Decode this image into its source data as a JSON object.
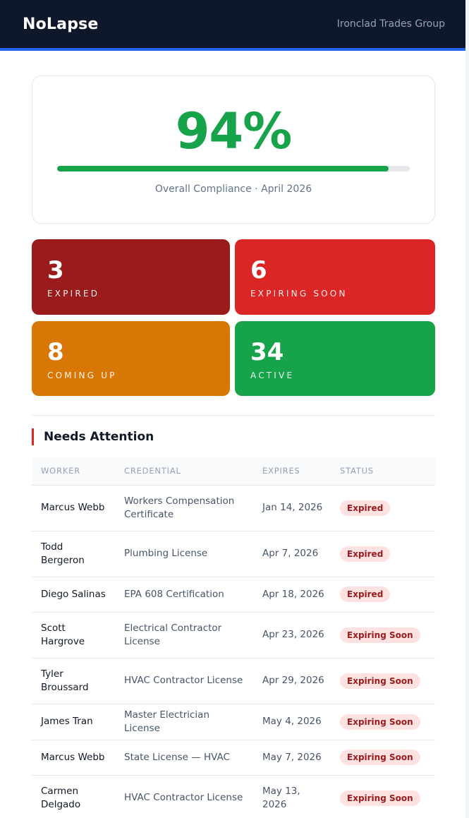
{
  "header": {
    "logo": "NoLapse",
    "org_name": "Ironclad Trades Group"
  },
  "compliance": {
    "value": "94%",
    "percent": 94,
    "caption": "Overall Compliance · April 2026"
  },
  "stats": [
    {
      "number": "3",
      "label": "EXPIRED",
      "color": "#991b1b"
    },
    {
      "number": "6",
      "label": "EXPIRING SOON",
      "color": "#dc2626"
    },
    {
      "number": "8",
      "label": "COMING UP",
      "color": "#d97706"
    },
    {
      "number": "34",
      "label": "ACTIVE",
      "color": "#16a34a"
    }
  ],
  "attention": {
    "title": "Needs Attention",
    "columns": [
      "WORKER",
      "CREDENTIAL",
      "EXPIRES",
      "STATUS"
    ],
    "rows": [
      {
        "worker": "Marcus Webb",
        "credential": "Workers Compensation Certificate",
        "expires": "Jan 14, 2026",
        "status": "Expired"
      },
      {
        "worker": "Todd Bergeron",
        "credential": "Plumbing License",
        "expires": "Apr 7, 2026",
        "status": "Expired"
      },
      {
        "worker": "Diego Salinas",
        "credential": "EPA 608 Certification",
        "expires": "Apr 18, 2026",
        "status": "Expired"
      },
      {
        "worker": "Scott Hargrove",
        "credential": "Electrical Contractor License",
        "expires": "Apr 23, 2026",
        "status": "Expiring Soon"
      },
      {
        "worker": "Tyler Broussard",
        "credential": "HVAC Contractor License",
        "expires": "Apr 29, 2026",
        "status": "Expiring Soon"
      },
      {
        "worker": "James Tran",
        "credential": "Master Electrician License",
        "expires": "May 4, 2026",
        "status": "Expiring Soon"
      },
      {
        "worker": "Marcus Webb",
        "credential": "State License — HVAC",
        "expires": "May 7, 2026",
        "status": "Expiring Soon"
      },
      {
        "worker": "Carmen Delgado",
        "credential": "HVAC Contractor License",
        "expires": "May 13, 2026",
        "status": "Expiring Soon"
      }
    ]
  }
}
